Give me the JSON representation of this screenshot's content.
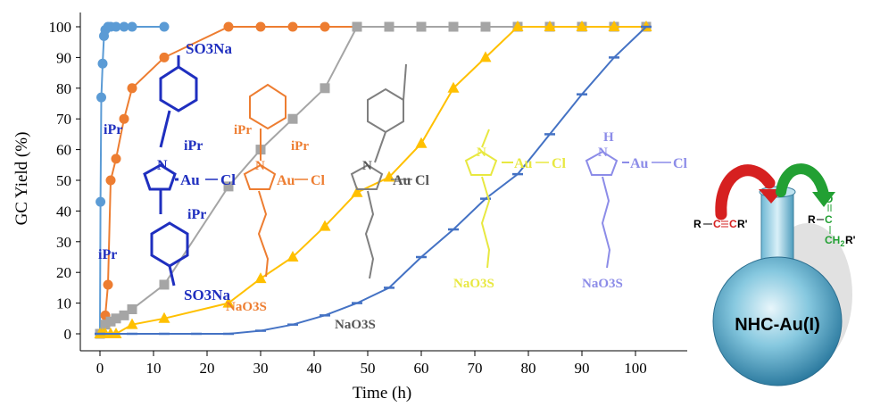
{
  "chart_data": {
    "type": "line",
    "xlabel": "Time (h)",
    "ylabel": "GC Yield (%)",
    "xlim": [
      -5,
      105
    ],
    "ylim": [
      0,
      100
    ],
    "x_ticks": [
      0,
      10,
      20,
      30,
      40,
      50,
      60,
      70,
      80,
      90,
      100
    ],
    "y_ticks": [
      0,
      10,
      20,
      30,
      40,
      50,
      60,
      70,
      80,
      90,
      100
    ],
    "grid": false,
    "series": [
      {
        "color": "#5B9BD5",
        "marker": "circle",
        "x": [
          0,
          0.1,
          0.25,
          0.5,
          0.75,
          1,
          1.5,
          2,
          3,
          4.5,
          6,
          12
        ],
        "y": [
          0,
          43,
          77,
          88,
          97,
          99,
          100,
          100,
          100,
          100,
          100,
          100
        ]
      },
      {
        "color": "#ED7D31",
        "marker": "circle",
        "x": [
          0,
          1,
          1.5,
          2,
          3,
          4.5,
          6,
          12,
          24,
          30,
          36,
          42,
          48
        ],
        "y": [
          0,
          6,
          16,
          50,
          57,
          70,
          80,
          90,
          100,
          100,
          100,
          100,
          100
        ]
      },
      {
        "color": "#A5A5A5",
        "marker": "square",
        "x": [
          0,
          1,
          2,
          3,
          4.5,
          6,
          12,
          24,
          30,
          36,
          42,
          48,
          54,
          60,
          66,
          72,
          78,
          84,
          90,
          96,
          102
        ],
        "y": [
          0,
          3,
          4,
          5,
          6,
          8,
          16,
          48,
          60,
          70,
          80,
          100,
          100,
          100,
          100,
          100,
          100,
          100,
          100,
          100,
          100
        ]
      },
      {
        "color": "#FFC000",
        "marker": "triangle",
        "x": [
          0,
          0.5,
          1,
          2,
          3,
          6,
          12,
          24,
          30,
          36,
          42,
          48,
          54,
          60,
          66,
          72,
          78,
          84,
          90,
          96,
          102
        ],
        "y": [
          0,
          0,
          0,
          0,
          0,
          3,
          5,
          10,
          18,
          25,
          35,
          46,
          51,
          62,
          80,
          90,
          100,
          100,
          100,
          100,
          100
        ]
      },
      {
        "color": "#4472C4",
        "marker": "dash",
        "x": [
          0,
          6,
          12,
          18,
          24,
          30,
          36,
          42,
          48,
          54,
          60,
          66,
          72,
          78,
          84,
          90,
          96,
          102
        ],
        "y": [
          0,
          0,
          0,
          0,
          0,
          1,
          3,
          6,
          10,
          15,
          25,
          34,
          44,
          52,
          65,
          78,
          90,
          100
        ]
      }
    ],
    "annotations": {
      "struct1": {
        "color": "#1F2FBF",
        "so3na_top": "SO3Na",
        "ipr_tl": "iPr",
        "ipr_tr": "iPr",
        "nhc_n": "N",
        "au": "Au",
        "cl": "Cl",
        "ipr_bl": "iPr",
        "ipr_br": "iPr",
        "so3na_bottom": "SO3Na"
      },
      "struct2": {
        "color": "#ED7D31",
        "ipr_l": "iPr",
        "ipr_r": "iPr",
        "nhc_n": "N",
        "au": "Au",
        "cl": "Cl",
        "naso3s": "NaO3S"
      },
      "struct3": {
        "color": "#7F7F7F",
        "nhc_n": "N",
        "au": "Au",
        "cl": "Cl",
        "naso3s": "NaO3S"
      },
      "struct4": {
        "color": "#E8E840",
        "nhc_n": "N",
        "au": "Au",
        "cl": "Cl",
        "naso3s": "NaO3S"
      },
      "struct5": {
        "color": "#8C8CE8",
        "nh": "H",
        "nhc_n": "N",
        "au": "Au",
        "cl": "Cl",
        "naso3s": "NaO3S"
      }
    }
  },
  "scheme": {
    "reactant_r": "R",
    "reactant_c1": "C",
    "reactant_c2": "C",
    "reactant_rprime": "R'",
    "product_r": "R",
    "product_c": "C",
    "product_o": "O",
    "product_ch2": "CH",
    "product_ch2_sub": "2",
    "product_rprime": "R'",
    "catalyst_label": "NHC-Au(I)"
  }
}
